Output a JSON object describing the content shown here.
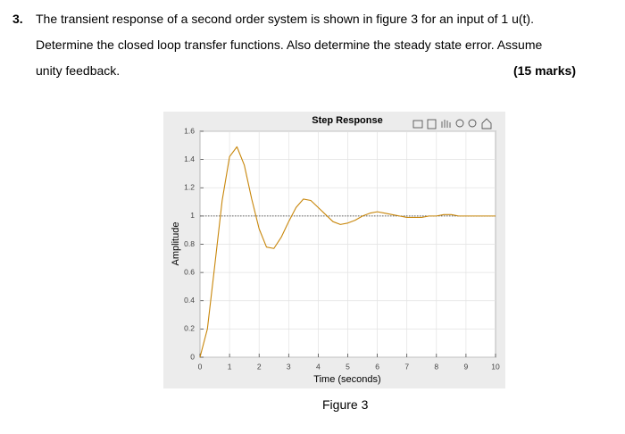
{
  "question": {
    "number": "3.",
    "lines": [
      "The transient response of a second order system is shown in figure 3 for an input of 1 u(t).",
      "Determine the closed loop transfer functions. Also determine the steady state error. Assume",
      "unity feedback."
    ],
    "marks": "(15 marks)"
  },
  "caption": "Figure 3",
  "chart_data": {
    "type": "line",
    "title": "Step Response",
    "xlabel": "Time (seconds)",
    "ylabel": "Amplitude",
    "x": [
      0,
      0.25,
      0.5,
      0.75,
      1,
      1.25,
      1.5,
      1.75,
      2,
      2.25,
      2.5,
      2.75,
      3,
      3.25,
      3.5,
      3.75,
      4,
      4.25,
      4.5,
      4.75,
      5,
      5.25,
      5.5,
      5.75,
      6,
      6.25,
      6.5,
      6.75,
      7,
      7.25,
      7.5,
      7.75,
      8,
      8.25,
      8.5,
      8.75,
      9,
      9.25,
      9.5,
      9.75,
      10
    ],
    "values": [
      0,
      0.2,
      0.65,
      1.11,
      1.42,
      1.49,
      1.36,
      1.12,
      0.91,
      0.78,
      0.77,
      0.85,
      0.96,
      1.06,
      1.12,
      1.11,
      1.06,
      1.01,
      0.96,
      0.94,
      0.95,
      0.97,
      1.0,
      1.02,
      1.03,
      1.02,
      1.01,
      1.0,
      0.99,
      0.99,
      0.99,
      1.0,
      1.0,
      1.01,
      1.01,
      1.0,
      1.0,
      1.0,
      1.0,
      1.0,
      1.0
    ],
    "color": "#c8860a",
    "steady_state_value": 1,
    "xlim": [
      0,
      10
    ],
    "xticks": [
      0,
      1,
      2,
      3,
      4,
      5,
      6,
      7,
      8,
      9,
      10
    ],
    "ylim": [
      0,
      1.6
    ],
    "yticks": [
      0,
      0.2,
      0.4,
      0.6,
      0.8,
      1,
      1.2,
      1.4,
      1.6
    ],
    "grid": true
  }
}
